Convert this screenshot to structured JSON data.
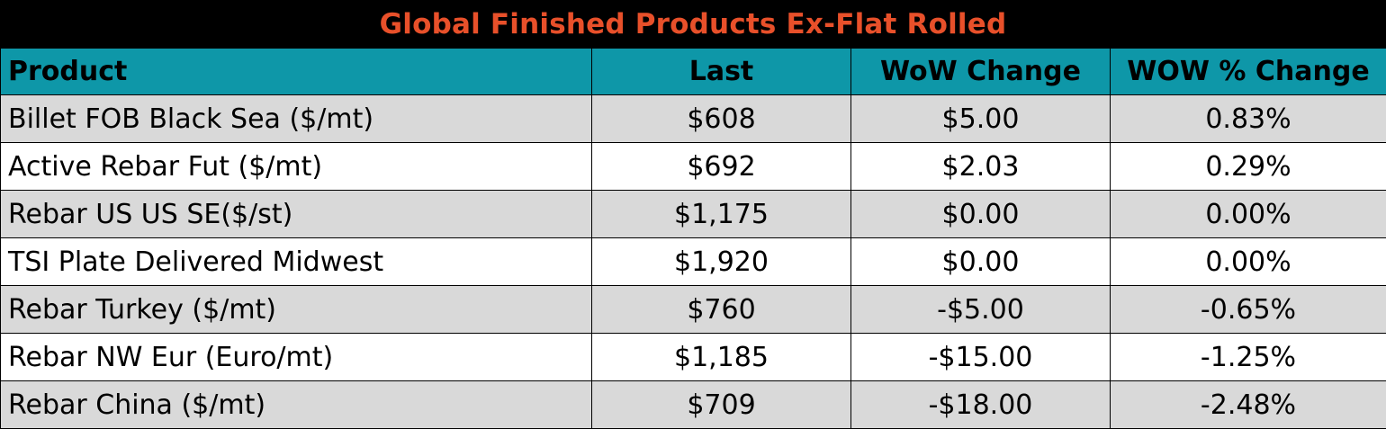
{
  "title": "Global Finished Products Ex-Flat Rolled",
  "columns": [
    "Product",
    "Last",
    "WoW Change",
    "WOW % Change"
  ],
  "rows": [
    {
      "product": "Billet FOB Black Sea ($/mt)",
      "last": "$608",
      "wow": "$5.00",
      "pct": "0.83%"
    },
    {
      "product": "Active Rebar Fut ($/mt)",
      "last": "$692",
      "wow": "$2.03",
      "pct": "0.29%"
    },
    {
      "product": "Rebar US US SE($/st)",
      "last": "$1,175",
      "wow": "$0.00",
      "pct": "0.00%"
    },
    {
      "product": "TSI Plate Delivered Midwest",
      "last": "$1,920",
      "wow": "$0.00",
      "pct": "0.00%"
    },
    {
      "product": "Rebar Turkey ($/mt)",
      "last": "$760",
      "wow": "-$5.00",
      "pct": "-0.65%"
    },
    {
      "product": "Rebar NW Eur (Euro/mt)",
      "last": "$1,185",
      "wow": "-$15.00",
      "pct": "-1.25%"
    },
    {
      "product": "Rebar China  ($/mt)",
      "last": "$709",
      "wow": "-$18.00",
      "pct": "-2.48%"
    }
  ],
  "colors": {
    "title_bg": "#000000",
    "title_text": "#e8502a",
    "header_bg": "#0e97a8",
    "band_gray": "#d9d9d9",
    "band_white": "#ffffff"
  }
}
